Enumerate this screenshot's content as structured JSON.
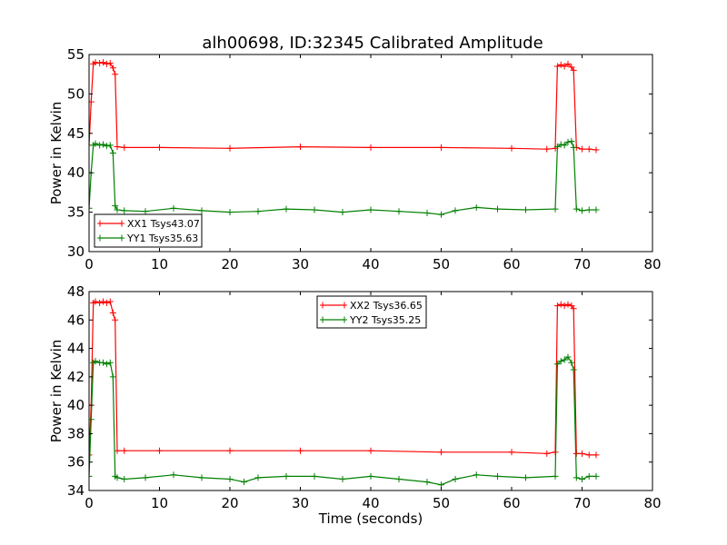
{
  "figure": {
    "title": "alh00698, ID:32345 Calibrated Amplitude",
    "background": "#ffffff"
  },
  "chart_data": [
    {
      "type": "line",
      "title": "alh00698, ID:32345 Calibrated Amplitude",
      "xlabel": "",
      "ylabel": "Power in Kelvin",
      "xlim": [
        0,
        80
      ],
      "ylim": [
        30,
        55
      ],
      "xticks": [
        0,
        10,
        20,
        30,
        40,
        50,
        60,
        70,
        80
      ],
      "yticks": [
        30,
        35,
        40,
        45,
        50,
        55
      ],
      "grid": false,
      "legend": "lower-left",
      "series": [
        {
          "name": "XX1 Tsys43.07",
          "color": "#ff0000",
          "marker": "+",
          "x": [
            0,
            0.3,
            0.6,
            0.9,
            1.5,
            2.0,
            2.5,
            3.0,
            3.4,
            3.7,
            4.0,
            5,
            10,
            20,
            30,
            40,
            50,
            60,
            65,
            66.2,
            66.5,
            67,
            67.5,
            68,
            68.5,
            68.8,
            69.2,
            70,
            71,
            72
          ],
          "y": [
            43.5,
            49.0,
            53.8,
            54.0,
            53.9,
            54.0,
            53.8,
            53.9,
            53.3,
            52.5,
            43.3,
            43.2,
            43.2,
            43.1,
            43.3,
            43.2,
            43.2,
            43.1,
            43.0,
            43.1,
            53.5,
            53.7,
            53.5,
            53.8,
            53.4,
            53.0,
            43.2,
            43.0,
            43.0,
            42.9
          ]
        },
        {
          "name": "YY1 Tsys35.63",
          "color": "#008000",
          "marker": "+",
          "x": [
            0,
            0.3,
            0.6,
            0.9,
            1.5,
            2.0,
            2.5,
            3.0,
            3.4,
            3.7,
            4.0,
            5,
            8,
            12,
            16,
            20,
            24,
            28,
            32,
            36,
            40,
            44,
            48,
            50,
            52,
            55,
            58,
            62,
            66.2,
            66.5,
            67,
            67.5,
            68,
            68.5,
            68.8,
            69.2,
            70,
            71,
            72
          ],
          "y": [
            35.5,
            40.0,
            43.5,
            43.7,
            43.5,
            43.6,
            43.4,
            43.5,
            42.5,
            35.8,
            35.3,
            35.2,
            35.1,
            35.5,
            35.2,
            35.0,
            35.1,
            35.4,
            35.3,
            35.0,
            35.3,
            35.1,
            34.9,
            34.7,
            35.2,
            35.6,
            35.4,
            35.3,
            35.4,
            43.3,
            43.6,
            43.5,
            43.9,
            44.0,
            43.2,
            35.4,
            35.2,
            35.3,
            35.3
          ]
        }
      ]
    },
    {
      "type": "line",
      "title": "",
      "xlabel": "Time (seconds)",
      "ylabel": "Power in Kelvin",
      "xlim": [
        0,
        80
      ],
      "ylim": [
        34,
        48
      ],
      "xticks": [
        0,
        10,
        20,
        30,
        40,
        50,
        60,
        70,
        80
      ],
      "yticks": [
        34,
        36,
        38,
        40,
        42,
        44,
        46,
        48
      ],
      "grid": false,
      "legend": "top-center",
      "series": [
        {
          "name": "XX2 Tsys36.65",
          "color": "#ff0000",
          "marker": "+",
          "x": [
            0,
            0.3,
            0.6,
            0.9,
            1.5,
            2.0,
            2.5,
            3.0,
            3.4,
            3.7,
            4.0,
            5,
            10,
            20,
            30,
            40,
            50,
            60,
            65,
            66.2,
            66.5,
            67,
            67.5,
            68,
            68.5,
            68.8,
            69.2,
            70,
            71,
            72
          ],
          "y": [
            36.5,
            40.0,
            47.2,
            47.3,
            47.2,
            47.3,
            47.2,
            47.3,
            46.5,
            46.0,
            36.8,
            36.8,
            36.8,
            36.8,
            36.8,
            36.8,
            36.7,
            36.7,
            36.6,
            36.7,
            47.0,
            47.1,
            47.0,
            47.1,
            47.0,
            46.8,
            36.6,
            36.6,
            36.5,
            36.5
          ]
        },
        {
          "name": "YY2 Tsys35.25",
          "color": "#008000",
          "marker": "+",
          "x": [
            0,
            0.3,
            0.6,
            0.9,
            1.5,
            2.0,
            2.5,
            3.0,
            3.4,
            3.7,
            4.0,
            5,
            8,
            12,
            16,
            20,
            22,
            24,
            28,
            32,
            36,
            40,
            44,
            48,
            50,
            52,
            55,
            58,
            62,
            66.2,
            66.5,
            67,
            67.5,
            68,
            68.5,
            68.8,
            69.2,
            70,
            71,
            72
          ],
          "y": [
            35.0,
            39.0,
            43.0,
            43.1,
            43.0,
            43.0,
            42.9,
            43.0,
            42.0,
            35.0,
            34.9,
            34.8,
            34.9,
            35.1,
            34.9,
            34.8,
            34.6,
            34.9,
            35.0,
            35.0,
            34.8,
            35.0,
            34.8,
            34.6,
            34.4,
            34.8,
            35.1,
            35.0,
            34.9,
            35.0,
            42.9,
            43.1,
            43.2,
            43.4,
            43.0,
            42.5,
            34.9,
            34.8,
            35.0,
            35.0
          ]
        }
      ]
    }
  ]
}
